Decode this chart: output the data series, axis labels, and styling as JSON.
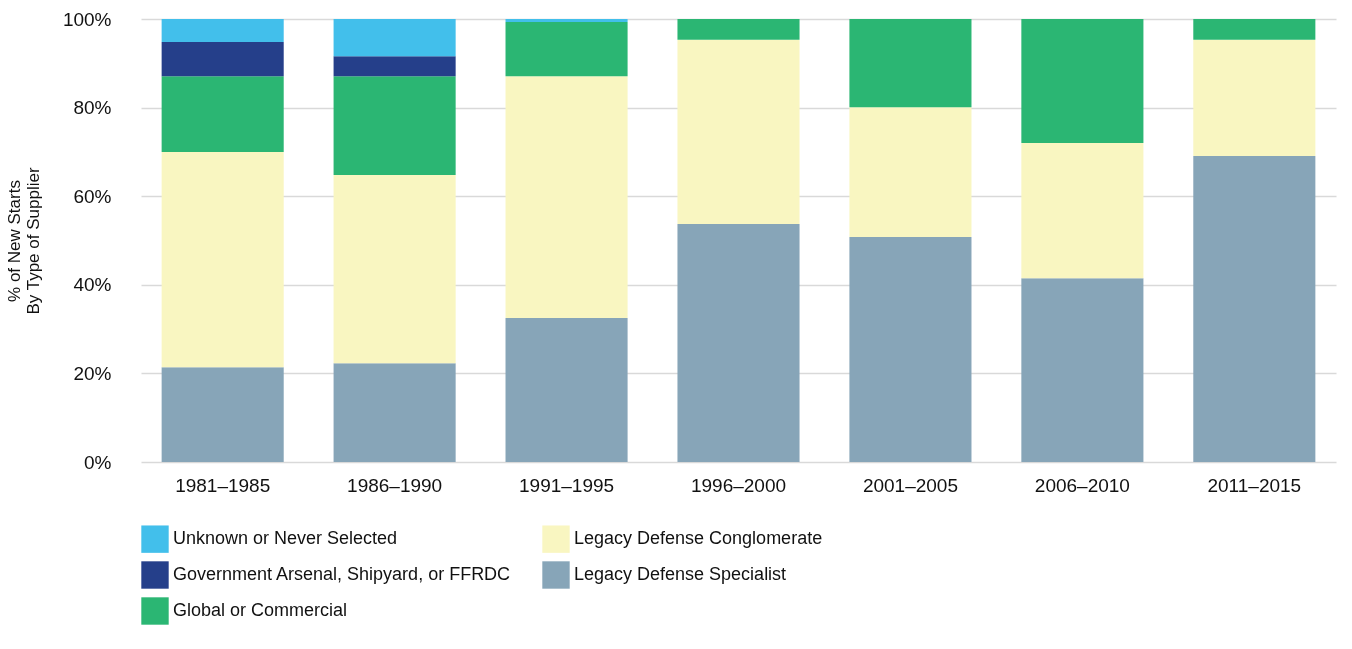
{
  "chart_data": {
    "type": "bar",
    "stacked": true,
    "ylabel": "% of New Starts\nBy Type of Supplier",
    "categories": [
      "1981–1985",
      "1986–1990",
      "1991–1995",
      "1996–2000",
      "2001–2005",
      "2006–2010",
      "2011–2015"
    ],
    "series": [
      {
        "name": "Legacy Defense Specialist",
        "color": "#87a5b8",
        "values": [
          21.4,
          22.3,
          32.5,
          53.7,
          50.8,
          41.5,
          69.1
        ]
      },
      {
        "name": "Legacy Defense Conglomerate",
        "color": "#f9f6c1",
        "values": [
          48.6,
          42.5,
          54.6,
          41.6,
          29.3,
          30.5,
          26.2
        ]
      },
      {
        "name": "Global or Commercial",
        "color": "#2bb673",
        "values": [
          17.1,
          22.3,
          12.2,
          4.7,
          19.9,
          28.0,
          4.7
        ]
      },
      {
        "name": "Government Arsenal, Shipyard, or FFRDC",
        "color": "#253f8a",
        "values": [
          7.7,
          4.5,
          null,
          null,
          null,
          null,
          null
        ]
      },
      {
        "name": "Unknown or Never Selected",
        "color": "#42bfeb",
        "values": [
          5.2,
          8.4,
          0.7,
          null,
          null,
          null,
          null
        ]
      }
    ],
    "ylim": [
      0,
      100
    ],
    "yticks": [
      {
        "value": 0,
        "label": "0%"
      },
      {
        "value": 20,
        "label": "20%"
      },
      {
        "value": 40,
        "label": "40%"
      },
      {
        "value": 60,
        "label": "60%"
      },
      {
        "value": 80,
        "label": "80%"
      },
      {
        "value": 100,
        "label": "100%"
      }
    ],
    "grid": "y",
    "legend": "bottom"
  }
}
